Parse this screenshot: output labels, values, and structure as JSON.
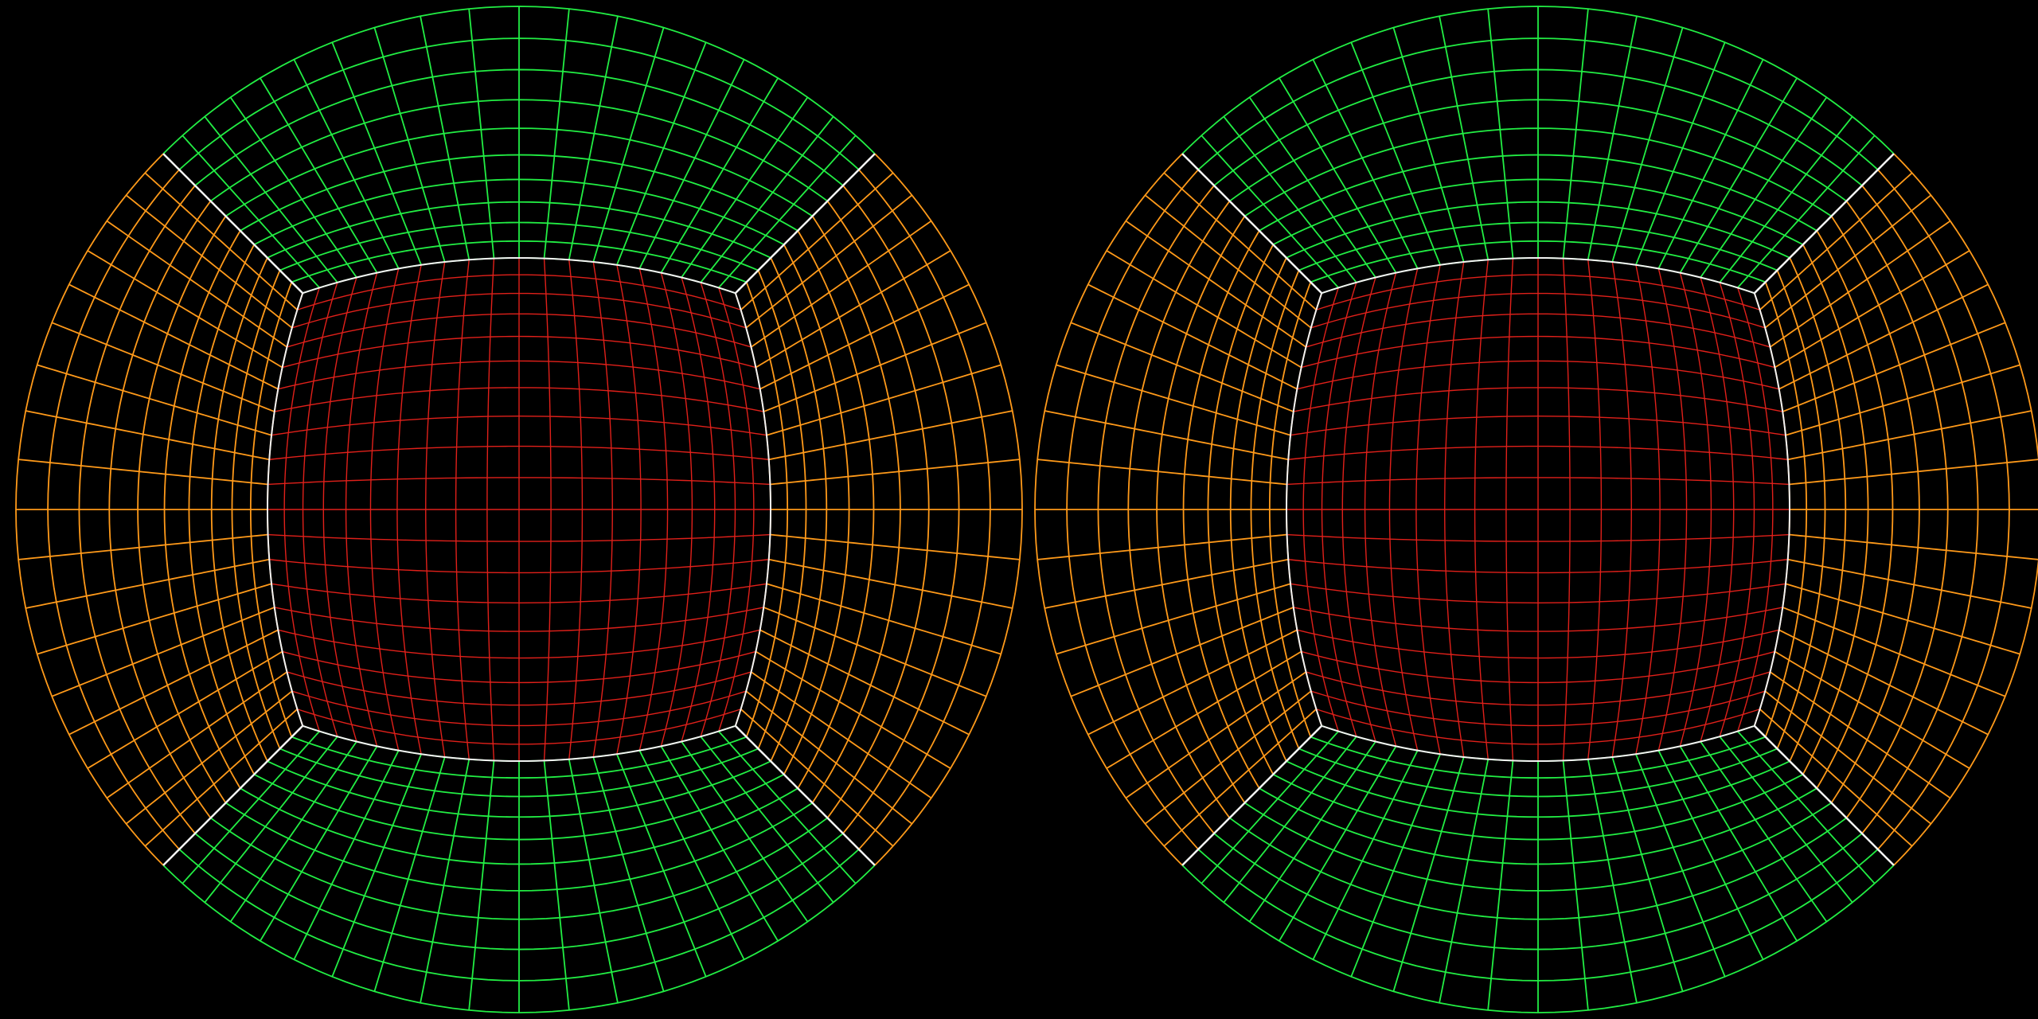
{
  "figure": {
    "description_kind": "dual fisheye cube-face grid",
    "views": [
      {
        "id": "left"
      },
      {
        "id": "right"
      }
    ],
    "faces": {
      "front": {
        "color": "#e0201a",
        "divisions": 20
      },
      "side": {
        "color": "#ff9a1a",
        "divisions": 20
      },
      "top_bottom": {
        "color": "#22ee44",
        "divisions": 20
      },
      "edge_color": "#f2f2f2",
      "background": "#000000"
    }
  }
}
